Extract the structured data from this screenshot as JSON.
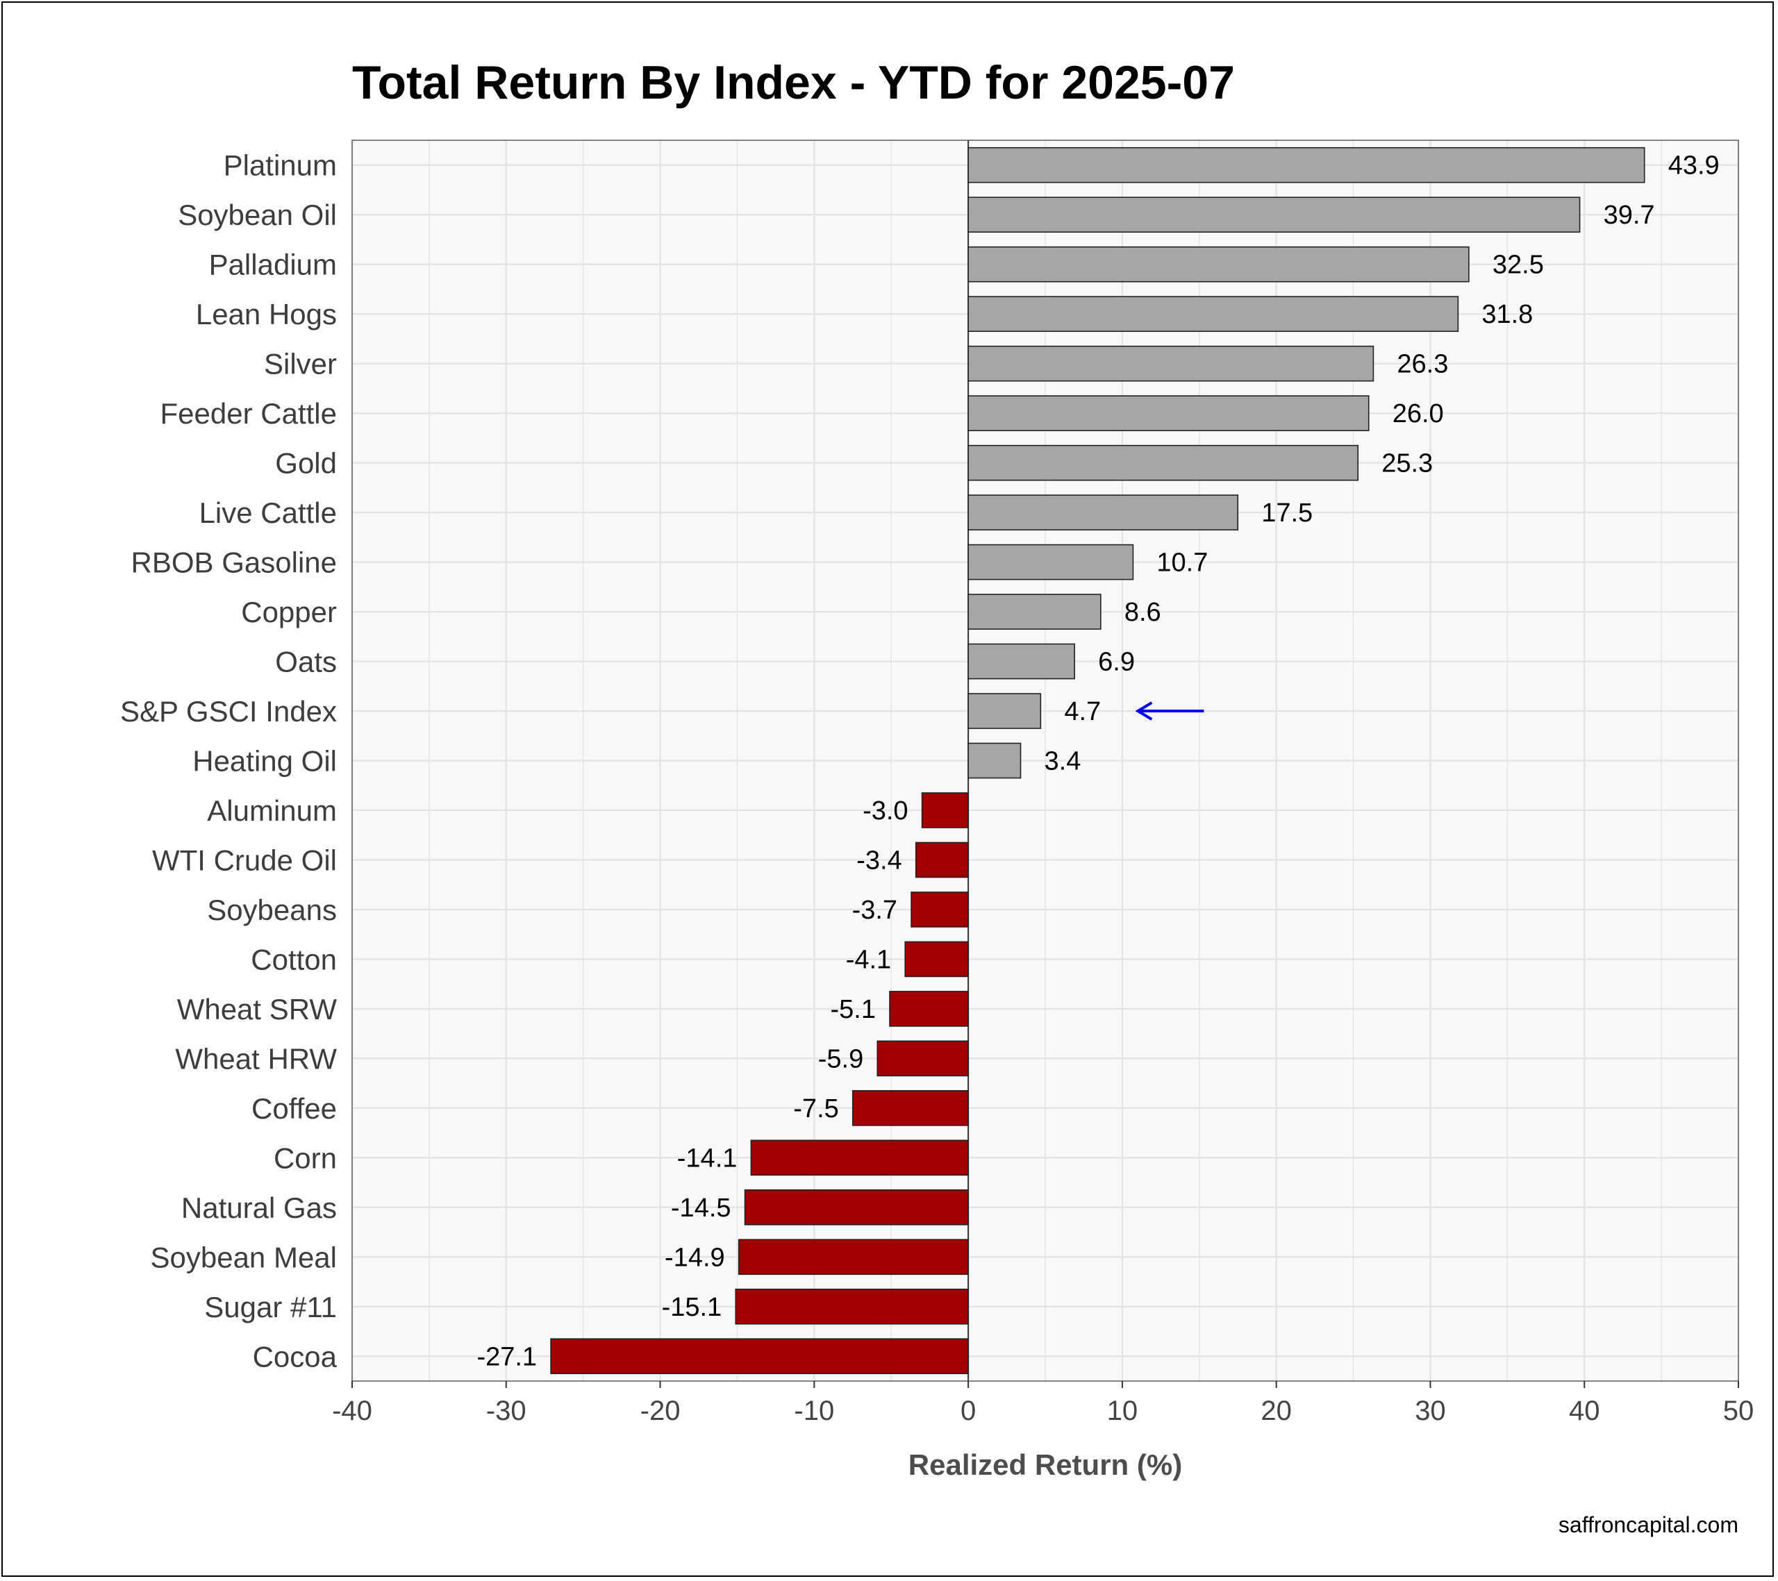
{
  "title": "Total Return By Index - YTD for 2025-07",
  "source": "saffroncapital.com",
  "colors": {
    "positive": "#a6a6a6",
    "negative": "#a00000",
    "highlight_label": "#0000ee",
    "panel_background": "#f8f8f8",
    "grid": "#e4e4e4"
  },
  "chart_data": {
    "type": "bar",
    "orientation": "horizontal",
    "title": "Total Return By Index - YTD for 2025-07",
    "xlabel": "Realized Return (%)",
    "ylabel": "",
    "xlim": [
      -40,
      50
    ],
    "x_ticks": [
      -40,
      -30,
      -20,
      -10,
      0,
      10,
      20,
      30,
      40,
      50
    ],
    "grid": true,
    "highlight": "S&P GSCI Index",
    "highlight_marker": "arrow",
    "categories": [
      "Platinum",
      "Soybean Oil",
      "Palladium",
      "Lean Hogs",
      "Silver",
      "Feeder Cattle",
      "Gold",
      "Live Cattle",
      "RBOB Gasoline",
      "Copper",
      "Oats",
      "S&P GSCI Index",
      "Heating Oil",
      "Aluminum",
      "WTI Crude Oil",
      "Soybeans",
      "Cotton",
      "Wheat SRW",
      "Wheat HRW",
      "Coffee",
      "Corn",
      "Natural Gas",
      "Soybean Meal",
      "Sugar #11",
      "Cocoa"
    ],
    "values": [
      43.9,
      39.7,
      32.5,
      31.8,
      26.3,
      26.0,
      25.3,
      17.5,
      10.7,
      8.6,
      6.9,
      4.7,
      3.4,
      -3.0,
      -3.4,
      -3.7,
      -4.1,
      -5.1,
      -5.9,
      -7.5,
      -14.1,
      -14.5,
      -14.9,
      -15.1,
      -27.1
    ],
    "value_labels": [
      "43.9",
      "39.7",
      "32.5",
      "31.8",
      "26.3",
      "26.0",
      "25.3",
      "17.5",
      "10.7",
      "8.6",
      "6.9",
      "4.7",
      "3.4",
      "-3.0",
      "-3.4",
      "-3.7",
      "-4.1",
      "-5.1",
      "-5.9",
      "-7.5",
      "-14.1",
      "-14.5",
      "-14.9",
      "-15.1",
      "-27.1"
    ]
  }
}
